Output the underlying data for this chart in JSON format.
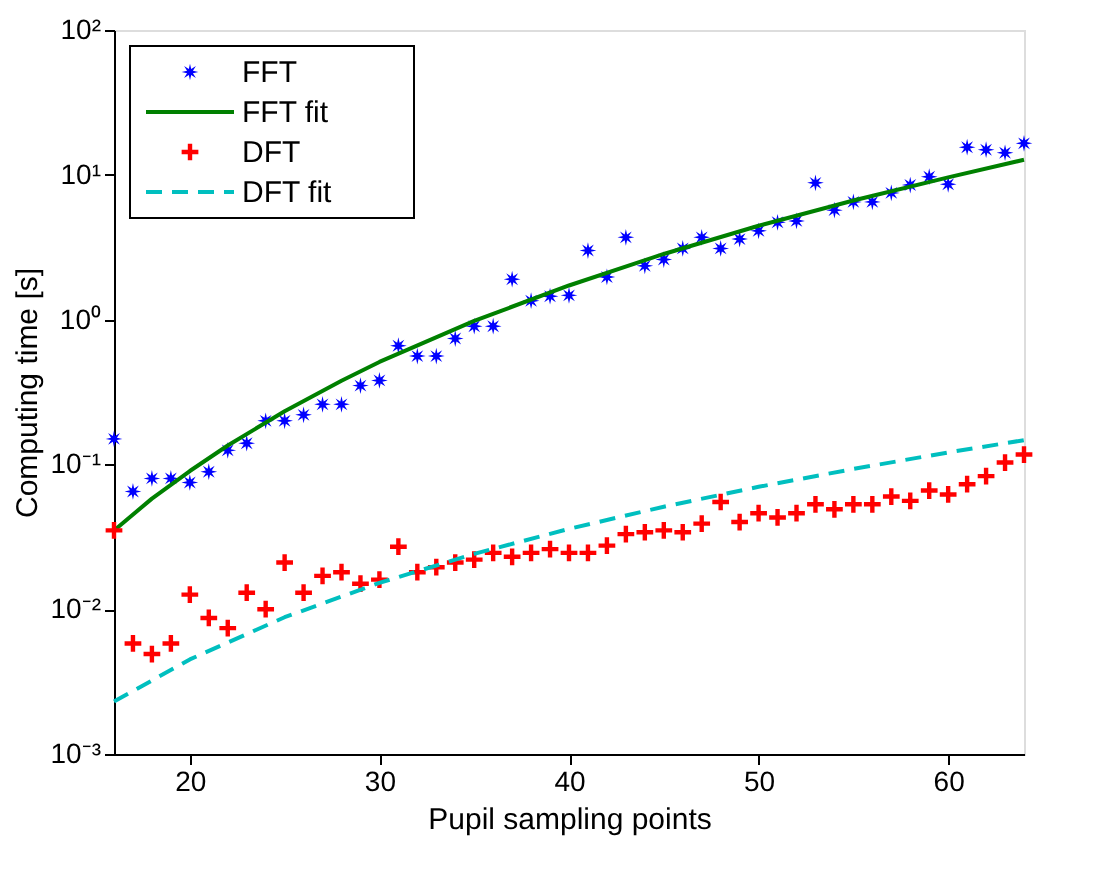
{
  "chart_data": {
    "type": "scatter",
    "xlabel": "Pupil sampling points",
    "ylabel": "Computing time [s]",
    "xlim": [
      16,
      64
    ],
    "xticks": [
      20,
      30,
      40,
      50,
      60
    ],
    "ylim": [
      0.001,
      100
    ],
    "yticks": [
      {
        "value": 0.001,
        "label": "10⁻³"
      },
      {
        "value": 0.01,
        "label": "10⁻²"
      },
      {
        "value": 0.1,
        "label": "10⁻¹"
      },
      {
        "value": 1,
        "label": "10⁰"
      },
      {
        "value": 10,
        "label": "10¹"
      },
      {
        "value": 100,
        "label": "10²"
      }
    ],
    "log": "y",
    "grid": false,
    "legend": "top left",
    "series": [
      {
        "name": "FFT",
        "marker": "star",
        "color": "#0000ff",
        "x": [
          16,
          17,
          18,
          19,
          20,
          21,
          22,
          23,
          24,
          25,
          26,
          27,
          28,
          29,
          30,
          31,
          32,
          33,
          34,
          35,
          36,
          37,
          38,
          39,
          40,
          41,
          42,
          43,
          44,
          45,
          46,
          47,
          48,
          49,
          50,
          51,
          52,
          53,
          54,
          55,
          56,
          57,
          58,
          59,
          60,
          61,
          62,
          63,
          64
        ],
        "values": [
          0.15,
          0.065,
          0.08,
          0.08,
          0.075,
          0.089,
          0.125,
          0.14,
          0.2,
          0.2,
          0.22,
          0.26,
          0.26,
          0.35,
          0.38,
          0.66,
          0.56,
          0.56,
          0.74,
          0.9,
          0.9,
          1.9,
          1.35,
          1.45,
          1.47,
          3.0,
          1.97,
          3.7,
          2.35,
          2.6,
          3.1,
          3.7,
          3.1,
          3.6,
          4.1,
          4.7,
          4.8,
          8.8,
          5.7,
          6.5,
          6.5,
          7.5,
          8.5,
          9.7,
          8.6,
          15.5,
          14.9,
          14.2,
          16.5
        ]
      },
      {
        "name": "FFT fit",
        "type": "line",
        "line_style": "solid",
        "color": "#008000",
        "x": [
          16,
          18,
          20,
          22,
          25,
          28,
          30,
          35,
          40,
          45,
          50,
          55,
          60,
          64
        ],
        "values": [
          0.035,
          0.058,
          0.09,
          0.135,
          0.233,
          0.378,
          0.51,
          0.98,
          1.72,
          2.84,
          4.45,
          6.65,
          9.6,
          12.7
        ]
      },
      {
        "name": "DFT",
        "marker": "cross",
        "color": "#ff0000",
        "x": [
          16,
          17,
          18,
          19,
          20,
          21,
          22,
          23,
          24,
          25,
          26,
          27,
          28,
          29,
          30,
          31,
          32,
          33,
          34,
          35,
          36,
          37,
          38,
          39,
          40,
          41,
          42,
          43,
          44,
          45,
          46,
          47,
          48,
          49,
          50,
          51,
          52,
          53,
          54,
          55,
          56,
          57,
          58,
          59,
          60,
          61,
          62,
          63,
          64
        ],
        "values": [
          0.035,
          0.0058,
          0.0049,
          0.0058,
          0.0126,
          0.0087,
          0.0074,
          0.013,
          0.01,
          0.021,
          0.013,
          0.017,
          0.018,
          0.015,
          0.016,
          0.027,
          0.018,
          0.0195,
          0.021,
          0.022,
          0.0245,
          0.023,
          0.0245,
          0.026,
          0.0245,
          0.0245,
          0.0275,
          0.033,
          0.034,
          0.035,
          0.034,
          0.039,
          0.055,
          0.04,
          0.046,
          0.043,
          0.046,
          0.053,
          0.049,
          0.053,
          0.053,
          0.06,
          0.056,
          0.066,
          0.062,
          0.073,
          0.083,
          0.103,
          0.117
        ]
      },
      {
        "name": "DFT fit",
        "type": "line",
        "line_style": "dashed",
        "color": "#00bfbf",
        "x": [
          16,
          20,
          25,
          30,
          35,
          40,
          45,
          50,
          55,
          60,
          64
        ],
        "values": [
          0.0023,
          0.0045,
          0.0088,
          0.0152,
          0.0241,
          0.0359,
          0.051,
          0.07,
          0.093,
          0.121,
          0.147
        ]
      }
    ]
  }
}
